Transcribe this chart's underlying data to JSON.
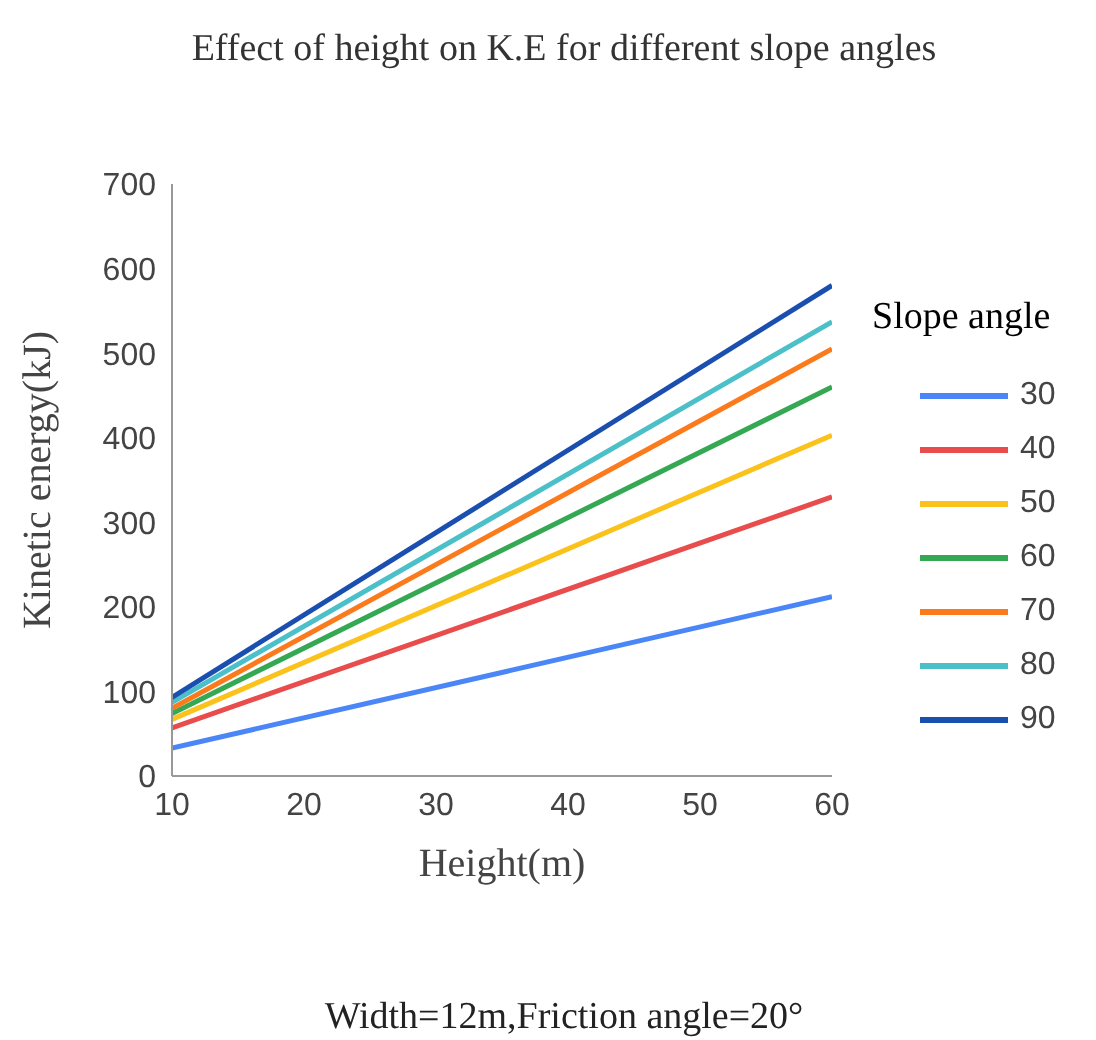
{
  "chart_data": {
    "type": "line",
    "title": "Effect of height on K.E for different slope angles",
    "xlabel": "Height(m)",
    "ylabel": "Kinetic  energy(kJ)",
    "legend_title": "Slope angle",
    "annotations": [
      "Width=12m,Friction angle=20°"
    ],
    "x": [
      10,
      60
    ],
    "xlim": [
      10,
      60
    ],
    "xticks": [
      10,
      20,
      30,
      40,
      50,
      60
    ],
    "ylim": [
      0,
      700
    ],
    "yticks": [
      0,
      100,
      200,
      300,
      400,
      500,
      600,
      700
    ],
    "grid": false,
    "legend": "right",
    "marker": "none",
    "line_style": "solid",
    "series": [
      {
        "name": "30",
        "color": "#4a86f7",
        "values": [
          33,
          212
        ]
      },
      {
        "name": "40",
        "color": "#e84c4c",
        "values": [
          57,
          330
        ]
      },
      {
        "name": "50",
        "color": "#fbc21c",
        "values": [
          67,
          403
        ]
      },
      {
        "name": "60",
        "color": "#34a853",
        "values": [
          74,
          460
        ]
      },
      {
        "name": "70",
        "color": "#fb7a1c",
        "values": [
          80,
          505
        ]
      },
      {
        "name": "80",
        "color": "#4bc0c8",
        "values": [
          87,
          537
        ]
      },
      {
        "name": "90",
        "color": "#1a4fb0",
        "values": [
          93,
          580
        ]
      }
    ]
  }
}
